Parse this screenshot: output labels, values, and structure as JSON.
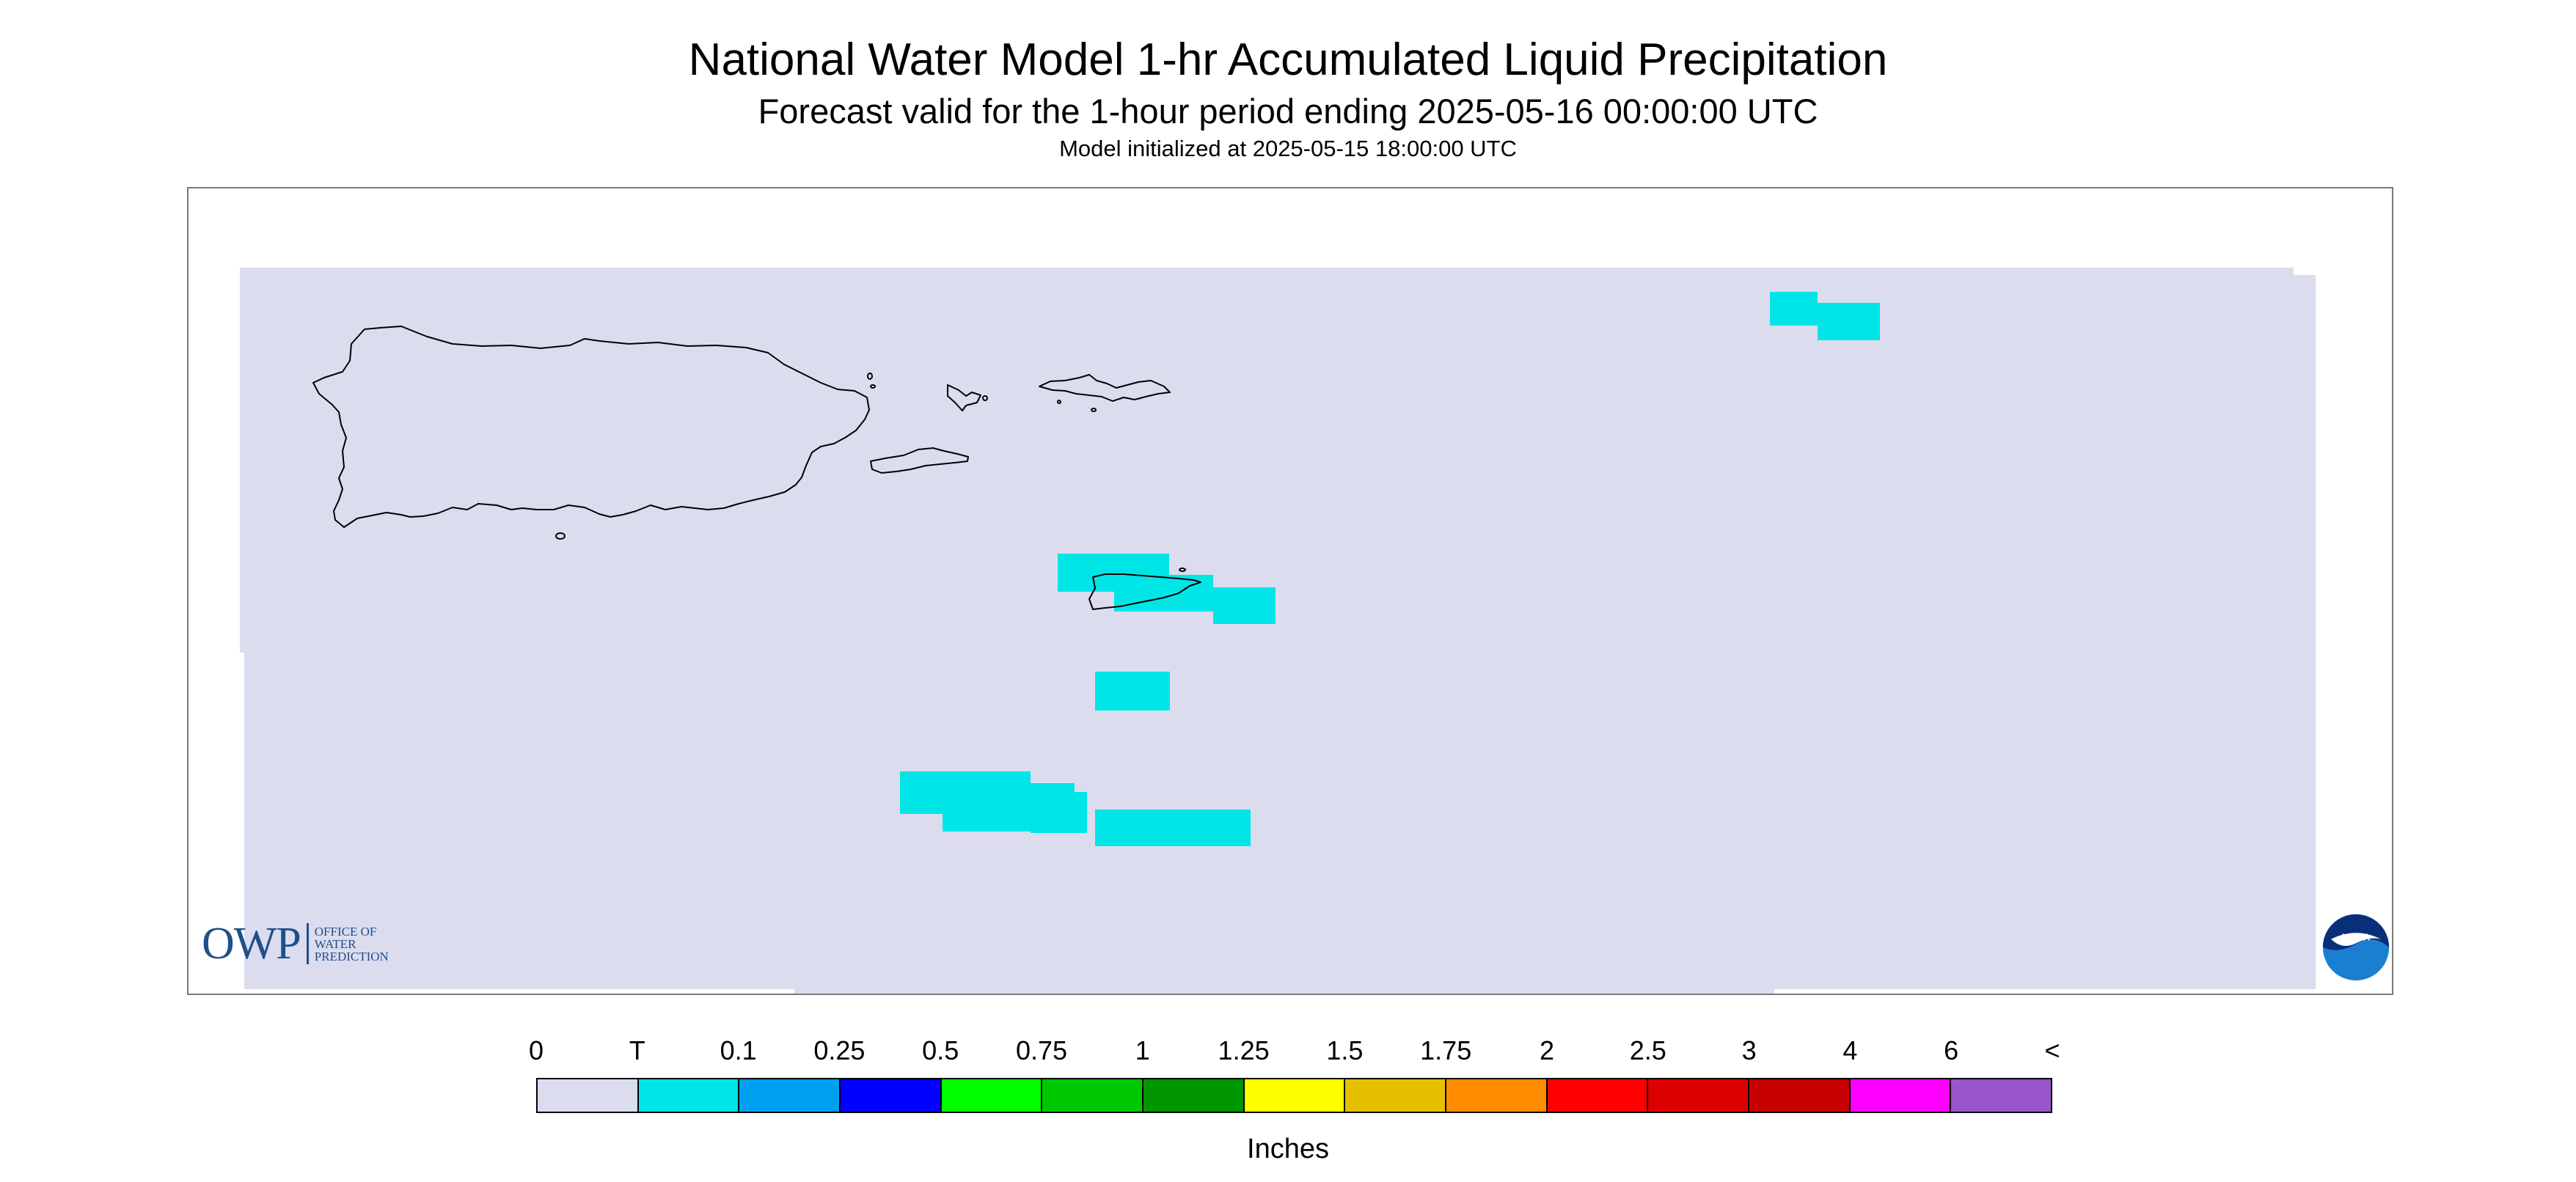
{
  "title": "National Water Model 1-hr Accumulated Liquid Precipitation",
  "subtitle": "Forecast valid for the 1-hour period ending 2025-05-16 00:00:00 UTC",
  "init_line": "Model initialized at 2025-05-15 18:00:00 UTC",
  "logos": {
    "owp_text": "OWP",
    "owp_small": [
      "OFFICE OF",
      "WATER",
      "PREDICTION"
    ],
    "noaa_text": "NOAA"
  },
  "colors": {
    "background_zero": "#dcdcef",
    "trace": "#00e6e6",
    "outline": "#000000"
  },
  "legend": {
    "labels": [
      "0",
      "T",
      "0.1",
      "0.25",
      "0.5",
      "0.75",
      "1",
      "1.25",
      "1.5",
      "1.75",
      "2",
      "2.5",
      "3",
      "4",
      "6",
      "<"
    ],
    "colors": [
      "#dcdcef",
      "#00e6e6",
      "#00a0f0",
      "#0000ff",
      "#00ff00",
      "#00c800",
      "#009600",
      "#ffff00",
      "#e6c000",
      "#ff8c00",
      "#ff0000",
      "#dc0000",
      "#c80000",
      "#ff00ff",
      "#9955cc"
    ],
    "units": "Inches"
  }
}
